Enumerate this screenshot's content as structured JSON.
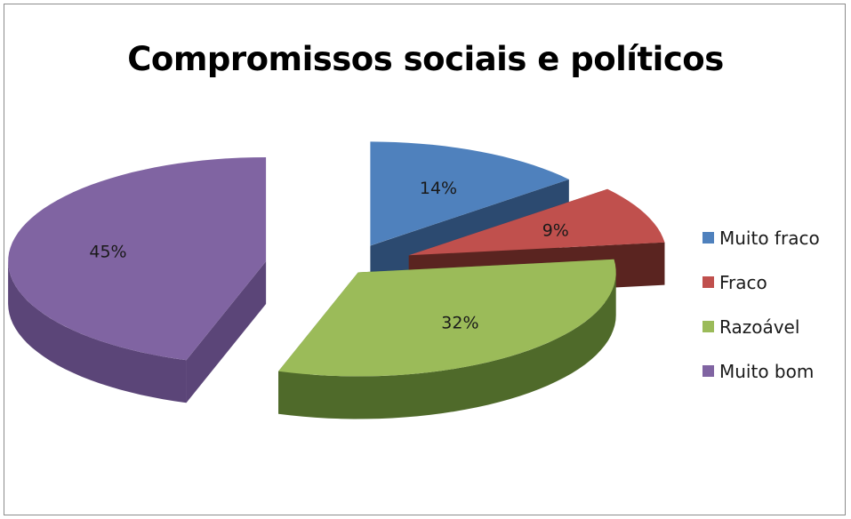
{
  "chart_data": {
    "type": "pie",
    "title": "Compromissos sociais e políticos",
    "categories": [
      "Muito fraco",
      "Fraco",
      "Razoável",
      "Muito bom"
    ],
    "values": [
      14,
      9,
      32,
      45
    ],
    "labels": [
      "14%",
      "9%",
      "32%",
      "45%"
    ],
    "colors": [
      "#4f81bd",
      "#c0504d",
      "#9bbb59",
      "#8064a2"
    ],
    "side_colors": [
      "#2c4a70",
      "#5a2420",
      "#4f6a2a",
      "#5b4578"
    ],
    "legend_position": "right",
    "style": "3d-exploded"
  }
}
